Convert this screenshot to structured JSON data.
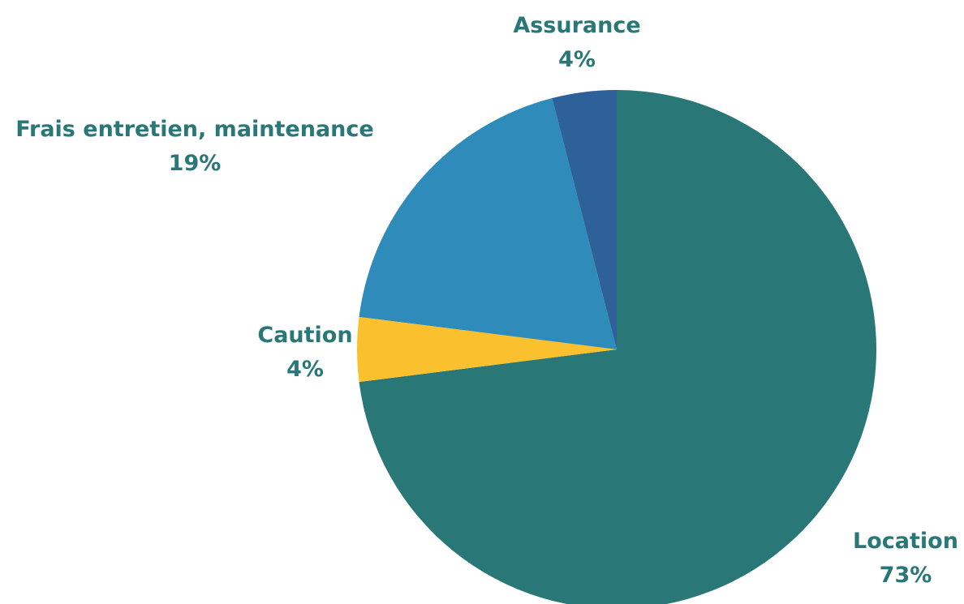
{
  "chart_data": {
    "type": "pie",
    "title": "",
    "slices": [
      {
        "label": "Location",
        "value": 73,
        "value_label": "73%",
        "color": "#297877"
      },
      {
        "label": "Caution",
        "value": 4,
        "value_label": "4%",
        "color": "#FBC02D"
      },
      {
        "label": "Frais entretien, maintenance",
        "value": 19,
        "value_label": "19%",
        "color": "#2E8BBA"
      },
      {
        "label": "Assurance",
        "value": 4,
        "value_label": "4%",
        "color": "#2E6099"
      }
    ],
    "start_angle_deg": 0,
    "direction": "clockwise",
    "label_color": "#297877",
    "legend": "none"
  }
}
